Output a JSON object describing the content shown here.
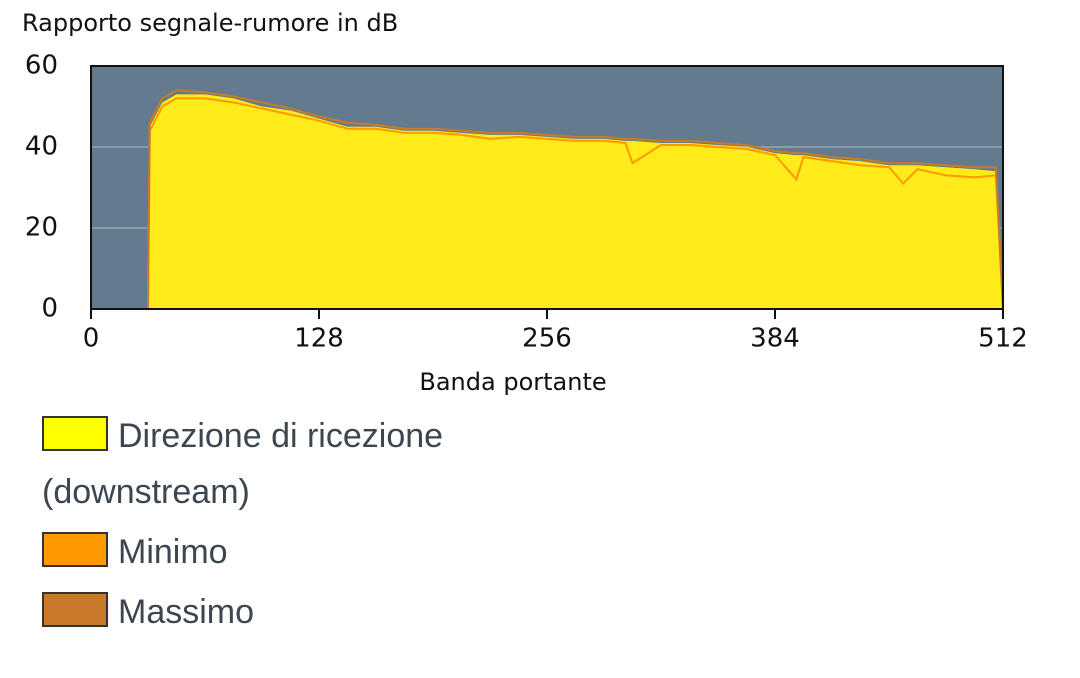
{
  "chart_data": {
    "type": "area",
    "ylabel": "Rapporto segnale-rumore in dB",
    "xlabel": "Banda portante",
    "x": [
      0,
      32,
      33,
      40,
      48,
      64,
      80,
      96,
      112,
      128,
      144,
      160,
      176,
      192,
      208,
      224,
      240,
      256,
      272,
      288,
      300,
      304,
      320,
      336,
      352,
      368,
      384,
      396,
      400,
      416,
      432,
      448,
      456,
      464,
      480,
      496,
      508,
      512
    ],
    "series": [
      {
        "name": "Direzione di ricezione (downstream)",
        "color": "#ffea1a",
        "fill": true,
        "values": [
          0,
          0,
          45,
          51,
          53,
          53,
          52,
          50,
          49,
          47,
          45,
          45,
          44,
          44,
          43.5,
          43,
          43,
          42.5,
          42,
          42,
          41.5,
          41.5,
          41,
          41,
          40.5,
          40,
          38.5,
          38,
          38,
          37,
          36.5,
          35.5,
          35.5,
          35.5,
          35,
          34.5,
          34,
          0
        ]
      },
      {
        "name": "Minimo",
        "color": "#ff9900",
        "fill": false,
        "values": [
          0,
          0,
          44,
          50,
          52,
          52,
          51,
          49.5,
          48,
          46.5,
          44.5,
          44.5,
          43.5,
          43.5,
          43,
          42,
          42.5,
          42,
          41.5,
          41.5,
          41,
          36,
          40.5,
          40.5,
          40,
          39.5,
          38,
          32,
          37.5,
          36.5,
          35.5,
          35,
          31,
          34.5,
          33,
          32.5,
          33,
          0
        ]
      },
      {
        "name": "Massimo",
        "color": "#c87a2a",
        "fill": false,
        "values": [
          0,
          0,
          46,
          52,
          54,
          53.5,
          52.5,
          51,
          49.5,
          47.5,
          46,
          45.5,
          44.5,
          44.5,
          44,
          43.5,
          43.5,
          43,
          42.5,
          42.5,
          42,
          42,
          41.5,
          41.5,
          41,
          40.5,
          39,
          38.5,
          38.5,
          37.5,
          37,
          36,
          36,
          36,
          35.5,
          35,
          35,
          0
        ]
      }
    ],
    "xlim": [
      0,
      512
    ],
    "xticks": [
      0,
      128,
      256,
      384,
      512
    ],
    "ylim": [
      0,
      60
    ],
    "yticks": [
      0,
      20,
      40,
      60
    ],
    "grid": true,
    "background": "#647a8e"
  }
}
